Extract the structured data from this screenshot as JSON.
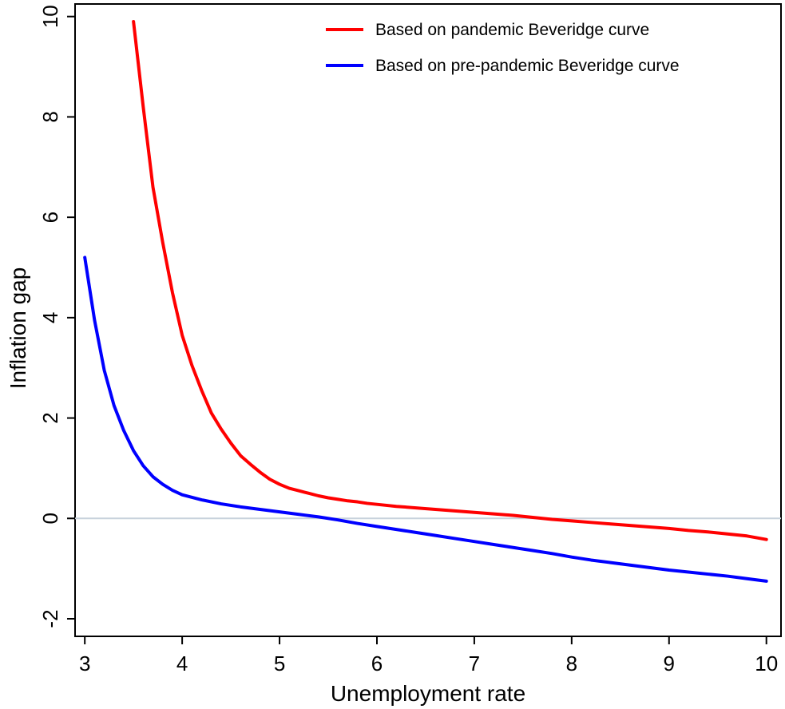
{
  "chart_data": {
    "type": "line",
    "title": "",
    "xlabel": "Unemployment rate",
    "ylabel": "Inflation gap",
    "xlim": [
      2.9,
      10.15
    ],
    "ylim": [
      -2.35,
      10.25
    ],
    "xticks": [
      3,
      4,
      5,
      6,
      7,
      8,
      9,
      10
    ],
    "yticks": [
      -2,
      0,
      2,
      4,
      6,
      8,
      10
    ],
    "grid": false,
    "reference_line": {
      "y": 0,
      "color": "#c8d2dc"
    },
    "legend": {
      "position": "top-right"
    },
    "series": [
      {
        "name": "Based on pandemic Beveridge curve",
        "color": "#ff0000",
        "x": [
          3.5,
          3.6,
          3.7,
          3.8,
          3.9,
          4.0,
          4.1,
          4.2,
          4.3,
          4.4,
          4.5,
          4.6,
          4.7,
          4.8,
          4.9,
          5.0,
          5.1,
          5.2,
          5.3,
          5.4,
          5.5,
          5.6,
          5.7,
          5.8,
          5.9,
          6.0,
          6.2,
          6.4,
          6.6,
          6.8,
          7.0,
          7.2,
          7.4,
          7.6,
          7.8,
          8.0,
          8.2,
          8.4,
          8.6,
          8.8,
          9.0,
          9.2,
          9.4,
          9.6,
          9.8,
          10.0
        ],
        "values": [
          9.9,
          8.2,
          6.6,
          5.5,
          4.5,
          3.65,
          3.05,
          2.55,
          2.1,
          1.78,
          1.5,
          1.25,
          1.08,
          0.92,
          0.78,
          0.68,
          0.6,
          0.55,
          0.5,
          0.45,
          0.41,
          0.38,
          0.35,
          0.33,
          0.3,
          0.28,
          0.24,
          0.21,
          0.18,
          0.15,
          0.12,
          0.09,
          0.06,
          0.02,
          -0.02,
          -0.05,
          -0.08,
          -0.11,
          -0.14,
          -0.17,
          -0.2,
          -0.24,
          -0.27,
          -0.31,
          -0.35,
          -0.42
        ]
      },
      {
        "name": "Based on pre-pandemic Beveridge curve",
        "color": "#0000ff",
        "x": [
          3.0,
          3.1,
          3.2,
          3.3,
          3.4,
          3.5,
          3.6,
          3.7,
          3.8,
          3.9,
          4.0,
          4.2,
          4.4,
          4.6,
          4.8,
          5.0,
          5.2,
          5.4,
          5.6,
          5.8,
          6.0,
          6.2,
          6.4,
          6.6,
          6.8,
          7.0,
          7.2,
          7.4,
          7.6,
          7.8,
          8.0,
          8.2,
          8.4,
          8.6,
          8.8,
          9.0,
          9.2,
          9.4,
          9.6,
          9.8,
          10.0
        ],
        "values": [
          5.2,
          3.95,
          2.95,
          2.25,
          1.75,
          1.35,
          1.05,
          0.83,
          0.68,
          0.56,
          0.47,
          0.37,
          0.29,
          0.23,
          0.18,
          0.13,
          0.08,
          0.03,
          -0.03,
          -0.1,
          -0.16,
          -0.22,
          -0.28,
          -0.34,
          -0.4,
          -0.46,
          -0.52,
          -0.58,
          -0.64,
          -0.7,
          -0.77,
          -0.83,
          -0.88,
          -0.93,
          -0.98,
          -1.03,
          -1.07,
          -1.11,
          -1.15,
          -1.2,
          -1.25
        ]
      }
    ]
  }
}
